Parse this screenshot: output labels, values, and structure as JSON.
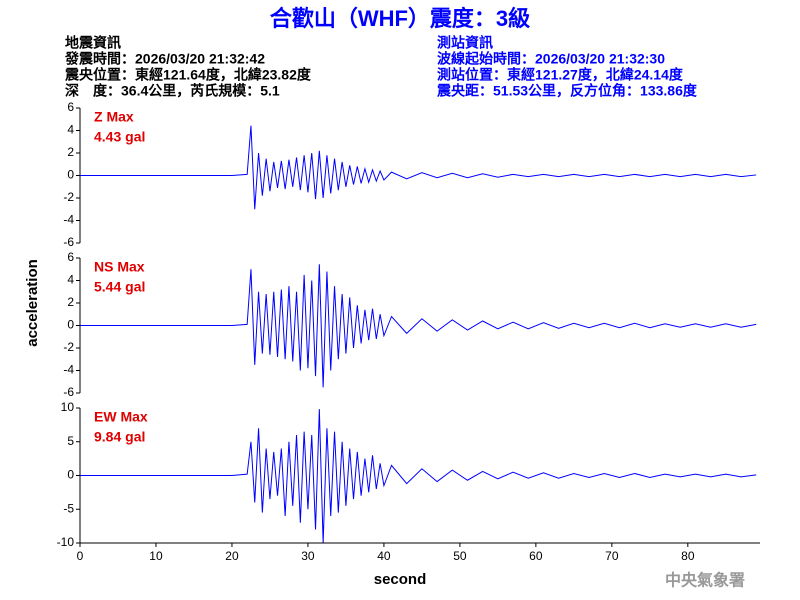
{
  "header": {
    "title": "合歡山（WHF）震度：3級",
    "quake": [
      "地震資訊",
      "發震時間：2026/03/20 21:32:42",
      "震央位置：東經121.64度，北緯23.82度",
      "深　度：36.4公里，芮氏規模：5.1"
    ],
    "station": [
      "測站資訊",
      "波線起始時間：2026/03/20 21:32:30",
      "測站位置：東經121.27度，北緯24.14度",
      "震央距：51.53公里，反方位角：133.86度"
    ],
    "footer": "中央氣象署"
  },
  "chart_data": [
    {
      "type": "line",
      "annotations": [
        "Z Max",
        "4.43 gal"
      ],
      "color": "#0000ff",
      "x": [
        0,
        10,
        20,
        22,
        22.5,
        23,
        23.5,
        24,
        24.5,
        25,
        25.5,
        26,
        26.5,
        27,
        27.5,
        28,
        28.5,
        29,
        29.5,
        30,
        30.5,
        31,
        31.5,
        32,
        32.5,
        33,
        33.5,
        34,
        34.5,
        35,
        35.5,
        36,
        36.5,
        37,
        37.5,
        38,
        38.5,
        39,
        39.5,
        40,
        41,
        43,
        45,
        47,
        49,
        51,
        53,
        55,
        57,
        59,
        61,
        63,
        65,
        67,
        69,
        71,
        73,
        75,
        77,
        79,
        81,
        83,
        85,
        87,
        89
      ],
      "values": [
        0,
        0,
        0,
        0.1,
        4.43,
        -3.0,
        2.0,
        -1.8,
        1.5,
        -1.4,
        1.2,
        -1.1,
        1.3,
        -1.2,
        1.4,
        -1.0,
        1.6,
        -1.3,
        1.8,
        -1.5,
        2.0,
        -2.1,
        2.2,
        -2.0,
        1.8,
        -1.6,
        1.5,
        -1.3,
        1.2,
        -1.0,
        0.9,
        -0.8,
        0.8,
        -0.7,
        0.6,
        -0.6,
        0.5,
        -0.5,
        0.4,
        -0.4,
        0.3,
        -0.3,
        0.25,
        -0.2,
        0.2,
        -0.2,
        0.15,
        -0.15,
        0.1,
        -0.1,
        0.1,
        -0.1,
        0.1,
        -0.1,
        0.1,
        -0.1,
        0.1,
        -0.1,
        0.1,
        -0.1,
        0.1,
        -0.1,
        0.1,
        -0.1,
        0.05
      ],
      "xlim": [
        0,
        89.5
      ],
      "ylim": [
        -6,
        6
      ],
      "yticks": [
        6,
        4,
        2,
        0,
        -2,
        -4,
        -6
      ]
    },
    {
      "type": "line",
      "annotations": [
        "NS Max",
        "5.44 gal"
      ],
      "color": "#0000ff",
      "ylabel": "acceleration",
      "x": [
        0,
        10,
        20,
        22,
        22.5,
        23,
        23.5,
        24,
        24.5,
        25,
        25.5,
        26,
        26.5,
        27,
        27.5,
        28,
        28.5,
        29,
        29.5,
        30,
        30.5,
        31,
        31.5,
        32,
        32.5,
        33,
        33.5,
        34,
        34.5,
        35,
        35.5,
        36,
        36.5,
        37,
        37.5,
        38,
        38.5,
        39,
        39.5,
        40,
        41,
        43,
        45,
        47,
        49,
        51,
        53,
        55,
        57,
        59,
        61,
        63,
        65,
        67,
        69,
        71,
        73,
        75,
        77,
        79,
        81,
        83,
        85,
        87,
        89
      ],
      "values": [
        0,
        0,
        0,
        0.1,
        5.0,
        -3.5,
        3.0,
        -2.5,
        2.8,
        -2.6,
        3.0,
        -2.8,
        3.2,
        -3.0,
        3.5,
        -3.2,
        3.0,
        -4.0,
        4.5,
        -3.8,
        4.0,
        -4.5,
        5.44,
        -5.5,
        4.8,
        -4.0,
        3.5,
        -3.0,
        2.8,
        -2.5,
        2.5,
        -2.0,
        1.8,
        -1.6,
        1.4,
        -1.3,
        1.5,
        -1.2,
        1.0,
        -0.9,
        0.8,
        -0.7,
        0.6,
        -0.5,
        0.5,
        -0.4,
        0.4,
        -0.3,
        0.3,
        -0.3,
        0.25,
        -0.25,
        0.2,
        -0.2,
        0.2,
        -0.2,
        0.2,
        -0.2,
        0.15,
        -0.15,
        0.15,
        -0.15,
        0.15,
        -0.15,
        0.1
      ],
      "xlim": [
        0,
        89.5
      ],
      "ylim": [
        -6,
        6
      ],
      "yticks": [
        6,
        4,
        2,
        0,
        -2,
        -4,
        -6
      ]
    },
    {
      "type": "line",
      "annotations": [
        "EW Max",
        "9.84 gal"
      ],
      "color": "#0000ff",
      "xlabel": "second",
      "x": [
        0,
        10,
        20,
        22,
        22.5,
        23,
        23.5,
        24,
        24.5,
        25,
        25.5,
        26,
        26.5,
        27,
        27.5,
        28,
        28.5,
        29,
        29.5,
        30,
        30.5,
        31,
        31.5,
        32,
        32.5,
        33,
        33.5,
        34,
        34.5,
        35,
        35.5,
        36,
        36.5,
        37,
        37.5,
        38,
        38.5,
        39,
        39.5,
        40,
        41,
        43,
        45,
        47,
        49,
        51,
        53,
        55,
        57,
        59,
        61,
        63,
        65,
        67,
        69,
        71,
        73,
        75,
        77,
        79,
        81,
        83,
        85,
        87,
        89
      ],
      "values": [
        0,
        0,
        0,
        0.2,
        5.0,
        -4.0,
        7.0,
        -5.5,
        4.0,
        -3.5,
        3.5,
        -3.0,
        4.0,
        -6.0,
        5.0,
        -4.5,
        6.0,
        -7.0,
        6.5,
        -5.0,
        6.0,
        -8.0,
        9.84,
        -10.0,
        7.0,
        -6.0,
        6.5,
        -5.5,
        5.0,
        -4.5,
        4.0,
        -3.5,
        3.5,
        -3.0,
        2.5,
        -2.5,
        3.0,
        -2.0,
        1.8,
        -1.5,
        1.5,
        -1.2,
        1.0,
        -0.9,
        0.8,
        -0.7,
        0.6,
        -0.5,
        0.5,
        -0.4,
        0.4,
        -0.4,
        0.3,
        -0.3,
        0.3,
        -0.3,
        0.3,
        -0.3,
        0.2,
        -0.2,
        0.2,
        -0.2,
        0.2,
        -0.2,
        0.1
      ],
      "xlim": [
        0,
        89.5
      ],
      "xticks": [
        0,
        10,
        20,
        30,
        40,
        50,
        60,
        70,
        80
      ],
      "ylim": [
        -10,
        10
      ],
      "yticks": [
        10,
        5,
        0,
        -5,
        -10
      ]
    }
  ]
}
